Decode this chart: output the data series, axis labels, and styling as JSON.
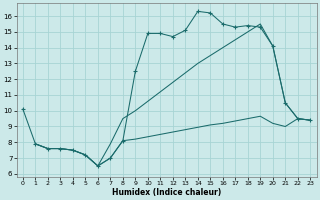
{
  "xlabel": "Humidex (Indice chaleur)",
  "bg_color": "#cce9e9",
  "grid_color": "#a8d4d4",
  "line_color": "#1a6b6b",
  "xlim": [
    -0.5,
    23.5
  ],
  "ylim": [
    5.8,
    16.8
  ],
  "xticks": [
    0,
    1,
    2,
    3,
    4,
    5,
    6,
    7,
    8,
    9,
    10,
    11,
    12,
    13,
    14,
    15,
    16,
    17,
    18,
    19,
    20,
    21,
    22,
    23
  ],
  "yticks": [
    6,
    7,
    8,
    9,
    10,
    11,
    12,
    13,
    14,
    15,
    16
  ],
  "curve1_x": [
    0,
    1,
    2,
    3,
    4,
    5,
    6,
    7,
    8,
    9,
    10,
    11,
    12,
    13,
    14,
    15,
    16,
    17,
    18,
    19,
    20,
    21,
    22,
    23
  ],
  "curve1_y": [
    10.1,
    7.9,
    7.6,
    7.6,
    7.5,
    7.2,
    6.5,
    7.0,
    8.1,
    12.5,
    14.9,
    14.9,
    14.7,
    15.1,
    16.3,
    16.2,
    15.5,
    15.3,
    15.4,
    15.3,
    14.1,
    10.5,
    9.5,
    9.4
  ],
  "curve2_x": [
    1,
    2,
    3,
    4,
    5,
    6,
    7,
    8,
    9,
    10,
    11,
    12,
    13,
    14,
    15,
    16,
    17,
    18,
    19,
    20,
    21,
    22,
    23
  ],
  "curve2_y": [
    7.9,
    7.6,
    7.6,
    7.5,
    7.2,
    6.5,
    7.9,
    9.5,
    10.0,
    10.6,
    11.2,
    11.8,
    12.4,
    13.0,
    13.5,
    14.0,
    14.5,
    15.0,
    15.5,
    14.1,
    10.5,
    9.5,
    9.4
  ],
  "curve3_x": [
    1,
    2,
    3,
    4,
    5,
    6,
    7,
    8,
    9,
    10,
    11,
    12,
    13,
    14,
    15,
    16,
    17,
    18,
    19,
    20,
    21,
    22,
    23
  ],
  "curve3_y": [
    7.9,
    7.6,
    7.6,
    7.5,
    7.2,
    6.5,
    7.0,
    8.1,
    8.2,
    8.35,
    8.5,
    8.65,
    8.8,
    8.95,
    9.1,
    9.2,
    9.35,
    9.5,
    9.65,
    9.2,
    9.0,
    9.5,
    9.4
  ]
}
